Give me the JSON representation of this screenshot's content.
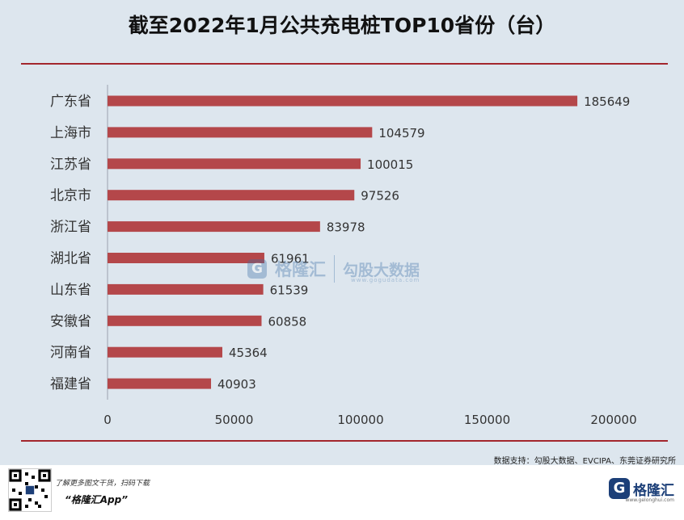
{
  "title": "截至2022年1月公共充电桩TOP10省份（台）",
  "source": "数据支持：勾股大数据、EVCIPA、东莞证券研究所",
  "watermark": {
    "brand": "格隆汇",
    "brand_url": "gelonghui.com",
    "partner": "勾股大数据",
    "partner_url": "www.gogudata.com",
    "logo_letter": "G"
  },
  "footer": {
    "promo_line": "了解更多图文干货，扫码下载",
    "app_name": "“格隆汇App”",
    "logo_letter": "G",
    "logo_name": "格隆汇",
    "logo_url": "www.gelonghui.com"
  },
  "colors": {
    "bar": "#b4474a",
    "rule": "#a3262d",
    "background": "#dde6ee"
  },
  "chart_data": {
    "type": "bar",
    "orientation": "horizontal",
    "title": "截至2022年1月公共充电桩TOP10省份（台）",
    "categories": [
      "广东省",
      "上海市",
      "江苏省",
      "北京市",
      "浙江省",
      "湖北省",
      "山东省",
      "安徽省",
      "河南省",
      "福建省"
    ],
    "values": [
      185649,
      104579,
      100015,
      97526,
      83978,
      61961,
      61539,
      60858,
      45364,
      40903
    ],
    "data_labels": [
      "185649",
      "104579",
      "100015",
      "97526",
      "83978",
      "61961",
      "61539",
      "60858",
      "45364",
      "40903"
    ],
    "xlim": [
      0,
      200000
    ],
    "xticks": [
      0,
      50000,
      100000,
      150000,
      200000
    ],
    "xtick_labels": [
      "0",
      "50000",
      "100000",
      "150000",
      "200000"
    ],
    "grid": false,
    "legend": "none"
  }
}
